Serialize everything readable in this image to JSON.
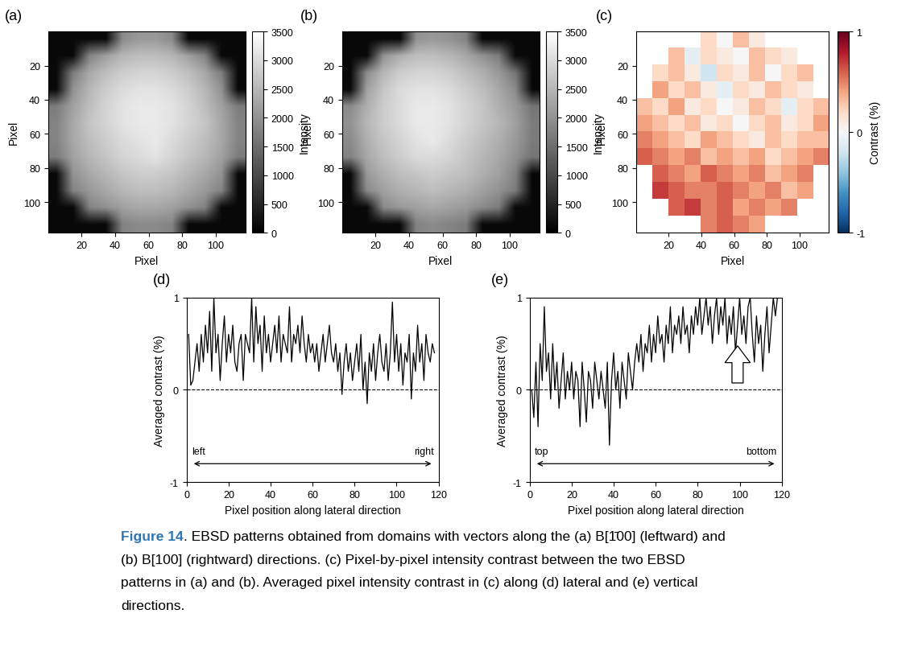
{
  "chart_data": [
    {
      "type": "heatmap",
      "panel": "(a)",
      "xlabel": "Pixel",
      "ylabel": "Pixel",
      "xlim": [
        0,
        118
      ],
      "ylim": [
        118,
        0
      ],
      "xticks": [
        20,
        40,
        60,
        80,
        100
      ],
      "yticks": [
        20,
        40,
        60,
        80,
        100
      ],
      "cells": [
        [
          120,
          120,
          120,
          120,
          1900,
          2100,
          2100,
          1900,
          120,
          120,
          120,
          120
        ],
        [
          120,
          120,
          1800,
          2200,
          2500,
          2600,
          2600,
          2500,
          2200,
          1800,
          120,
          120
        ],
        [
          120,
          1700,
          2300,
          2600,
          2800,
          2900,
          2900,
          2800,
          2600,
          2300,
          1700,
          120
        ],
        [
          120,
          2000,
          2500,
          2800,
          3000,
          3100,
          3100,
          3000,
          2800,
          2500,
          2000,
          120
        ],
        [
          1700,
          2200,
          2600,
          2900,
          3100,
          3200,
          3200,
          3100,
          2900,
          2600,
          2200,
          1700
        ],
        [
          1800,
          2300,
          2700,
          2900,
          3100,
          3200,
          3200,
          3100,
          2900,
          2700,
          2300,
          1800
        ],
        [
          1800,
          2300,
          2600,
          2800,
          3000,
          3100,
          3200,
          3000,
          2800,
          2600,
          2300,
          1800
        ],
        [
          1700,
          2200,
          2500,
          2700,
          2900,
          3000,
          3100,
          2900,
          2700,
          2500,
          2200,
          1700
        ],
        [
          120,
          2000,
          2300,
          2500,
          2700,
          2800,
          2800,
          2700,
          2500,
          2300,
          2000,
          120
        ],
        [
          120,
          1800,
          2100,
          2300,
          2500,
          2600,
          2600,
          2500,
          2300,
          2100,
          1800,
          120
        ],
        [
          120,
          120,
          1800,
          2000,
          2200,
          2300,
          2300,
          2200,
          2000,
          1800,
          120,
          120
        ],
        [
          120,
          120,
          120,
          120,
          1800,
          1900,
          1900,
          1800,
          120,
          120,
          120,
          120
        ]
      ],
      "colorbar": {
        "label": "Intensity",
        "range": [
          0,
          3500
        ],
        "ticks": [
          0,
          500,
          1000,
          1500,
          2000,
          2500,
          3000,
          3500
        ]
      }
    },
    {
      "type": "heatmap",
      "panel": "(b)",
      "xlabel": "Pixel",
      "ylabel": "Pixel",
      "xlim": [
        0,
        118
      ],
      "ylim": [
        118,
        0
      ],
      "xticks": [
        20,
        40,
        60,
        80,
        100
      ],
      "yticks": [
        20,
        40,
        60,
        80,
        100
      ],
      "cells": [
        [
          120,
          120,
          120,
          120,
          2000,
          2100,
          2000,
          1800,
          120,
          120,
          120,
          120
        ],
        [
          120,
          120,
          2000,
          2400,
          2600,
          2600,
          2500,
          2300,
          2000,
          1700,
          120,
          120
        ],
        [
          120,
          1900,
          2500,
          2800,
          2900,
          2900,
          2800,
          2600,
          2400,
          2100,
          1600,
          120
        ],
        [
          120,
          2200,
          2700,
          3000,
          3100,
          3100,
          3000,
          2800,
          2600,
          2300,
          1900,
          120
        ],
        [
          1900,
          2400,
          2800,
          3000,
          3200,
          3200,
          3100,
          2900,
          2700,
          2400,
          2100,
          1600
        ],
        [
          2000,
          2500,
          2800,
          3000,
          3200,
          3200,
          3100,
          2900,
          2700,
          2500,
          2200,
          1700
        ],
        [
          1900,
          2400,
          2700,
          2900,
          3100,
          3200,
          3000,
          2800,
          2600,
          2400,
          2100,
          1700
        ],
        [
          1800,
          2300,
          2600,
          2800,
          3000,
          3000,
          2900,
          2700,
          2500,
          2300,
          2000,
          1600
        ],
        [
          120,
          2100,
          2400,
          2600,
          2700,
          2800,
          2700,
          2600,
          2400,
          2200,
          1800,
          120
        ],
        [
          120,
          1900,
          2200,
          2400,
          2500,
          2600,
          2500,
          2400,
          2200,
          2000,
          1700,
          120
        ],
        [
          120,
          120,
          1900,
          2100,
          2200,
          2300,
          2200,
          2100,
          1900,
          1700,
          120,
          120
        ],
        [
          120,
          120,
          120,
          120,
          1800,
          1900,
          1800,
          1700,
          120,
          120,
          120,
          120
        ]
      ],
      "colorbar": {
        "label": "Intensity",
        "range": [
          0,
          3500
        ],
        "ticks": [
          0,
          500,
          1000,
          1500,
          2000,
          2500,
          3000,
          3500
        ]
      }
    },
    {
      "type": "heatmap",
      "panel": "(c)",
      "xlabel": "Pixel",
      "ylabel": "Pixel",
      "xlim": [
        0,
        118
      ],
      "ylim": [
        118,
        0
      ],
      "xticks": [
        20,
        40,
        60,
        80,
        100
      ],
      "yticks": [
        20,
        40,
        60,
        80,
        100
      ],
      "cells": [
        [
          null,
          null,
          null,
          null,
          0.2,
          0.0,
          0.3,
          0.1,
          null,
          null,
          null,
          null
        ],
        [
          null,
          null,
          0.3,
          -0.1,
          0.2,
          0.1,
          0.0,
          0.3,
          0.2,
          0.1,
          null,
          null
        ],
        [
          null,
          0.2,
          0.3,
          0.1,
          -0.2,
          0.2,
          0.1,
          0.3,
          0.0,
          0.2,
          0.3,
          null
        ],
        [
          null,
          0.4,
          0.2,
          0.3,
          0.1,
          -0.1,
          0.2,
          0.1,
          0.3,
          0.2,
          0.1,
          null
        ],
        [
          0.3,
          0.2,
          0.4,
          0.1,
          0.2,
          0.0,
          0.1,
          0.3,
          0.2,
          -0.1,
          0.2,
          0.3
        ],
        [
          0.4,
          0.3,
          0.2,
          0.3,
          0.1,
          0.2,
          0.0,
          0.2,
          0.3,
          0.1,
          0.2,
          0.4
        ],
        [
          0.5,
          0.4,
          0.3,
          0.2,
          0.4,
          0.3,
          0.2,
          0.1,
          0.3,
          0.2,
          0.3,
          0.3
        ],
        [
          0.6,
          0.5,
          0.4,
          0.5,
          0.3,
          0.4,
          0.3,
          0.4,
          0.2,
          0.3,
          0.4,
          0.5
        ],
        [
          null,
          0.6,
          0.5,
          0.4,
          0.6,
          0.5,
          0.4,
          0.5,
          0.3,
          0.4,
          0.5,
          null
        ],
        [
          null,
          0.7,
          0.6,
          0.5,
          0.5,
          0.6,
          0.5,
          0.4,
          0.5,
          0.3,
          0.4,
          null
        ],
        [
          null,
          null,
          0.6,
          0.7,
          0.5,
          0.6,
          0.4,
          0.5,
          0.4,
          0.5,
          null,
          null
        ],
        [
          null,
          null,
          null,
          null,
          0.5,
          0.6,
          0.5,
          0.4,
          null,
          null,
          null,
          null
        ]
      ],
      "colorbar": {
        "label": "Contrast (%)",
        "range": [
          -1,
          1
        ],
        "ticks": [
          -1,
          0,
          1
        ]
      }
    },
    {
      "type": "line",
      "panel": "(d)",
      "xlabel": "Pixel position along lateral direction",
      "ylabel": "Averaged contrast (%)",
      "xlim": [
        0,
        120
      ],
      "ylim": [
        -1,
        1
      ],
      "xticks": [
        0,
        20,
        40,
        60,
        80,
        100,
        120
      ],
      "yticks": [
        -1,
        0,
        1
      ],
      "hline": 0,
      "color": "#000000",
      "arrow_labels": [
        "left",
        "right"
      ],
      "x": [
        1,
        2,
        3,
        4,
        5,
        6,
        7,
        8,
        9,
        10,
        11,
        12,
        13,
        14,
        15,
        16,
        17,
        18,
        19,
        20,
        21,
        22,
        23,
        24,
        25,
        26,
        27,
        28,
        29,
        30,
        31,
        32,
        33,
        34,
        35,
        36,
        37,
        38,
        39,
        40,
        41,
        42,
        43,
        44,
        45,
        46,
        47,
        48,
        49,
        50,
        51,
        52,
        53,
        54,
        55,
        56,
        57,
        58,
        59,
        60,
        61,
        62,
        63,
        64,
        65,
        66,
        67,
        68,
        69,
        70,
        71,
        72,
        73,
        74,
        75,
        76,
        77,
        78,
        79,
        80,
        81,
        82,
        83,
        84,
        85,
        86,
        87,
        88,
        89,
        90,
        91,
        92,
        93,
        94,
        95,
        96,
        97,
        98,
        99,
        100,
        101,
        102,
        103,
        104,
        105,
        106,
        107,
        108,
        109,
        110,
        111,
        112,
        113,
        114,
        115,
        116,
        117,
        118
      ],
      "values": [
        0.6,
        0.05,
        0.1,
        0.3,
        0.5,
        0.2,
        0.6,
        0.3,
        0.7,
        0.4,
        0.85,
        0.2,
        1.0,
        0.4,
        0.6,
        0.1,
        0.5,
        0.8,
        0.3,
        0.6,
        0.4,
        0.7,
        0.3,
        0.2,
        0.5,
        0.6,
        0.1,
        0.6,
        0.5,
        0.4,
        1.0,
        0.3,
        0.9,
        0.5,
        0.7,
        0.2,
        0.8,
        0.4,
        0.6,
        0.3,
        0.5,
        0.7,
        0.4,
        0.8,
        0.3,
        0.6,
        0.5,
        0.4,
        0.9,
        0.3,
        0.6,
        0.5,
        0.7,
        0.4,
        0.8,
        0.5,
        0.3,
        0.6,
        0.4,
        0.5,
        0.3,
        0.5,
        0.2,
        0.4,
        0.6,
        0.3,
        0.5,
        0.7,
        0.4,
        0.3,
        0.5,
        0.2,
        0.4,
        -0.05,
        0.3,
        0.5,
        0.2,
        0.4,
        0.1,
        0.3,
        0.5,
        0.2,
        0.6,
        0.0,
        0.3,
        -0.15,
        0.4,
        0.2,
        0.5,
        0.1,
        0.4,
        0.6,
        0.3,
        0.2,
        0.5,
        0.1,
        0.4,
        0.95,
        0.3,
        0.6,
        0.2,
        0.5,
        0.05,
        0.4,
        0.3,
        0.6,
        -0.1,
        0.4,
        0.2,
        0.7,
        0.3,
        0.5,
        0.1,
        0.6,
        0.4,
        0.3,
        0.5,
        0.4
      ]
    },
    {
      "type": "line",
      "panel": "(e)",
      "xlabel": "Pixel position along lateral direction",
      "ylabel": "Averaged contrast (%)",
      "xlim": [
        0,
        120
      ],
      "ylim": [
        -1,
        1
      ],
      "xticks": [
        0,
        20,
        40,
        60,
        80,
        100,
        120
      ],
      "yticks": [
        -1,
        0,
        1
      ],
      "hline": 0,
      "color": "#000000",
      "arrow_labels": [
        "top",
        "bottom"
      ],
      "arrow": {
        "x": 99,
        "y_from": 0.05,
        "y_to": 0.5
      },
      "x": [
        1,
        2,
        3,
        4,
        5,
        6,
        7,
        8,
        9,
        10,
        11,
        12,
        13,
        14,
        15,
        16,
        17,
        18,
        19,
        20,
        21,
        22,
        23,
        24,
        25,
        26,
        27,
        28,
        29,
        30,
        31,
        32,
        33,
        34,
        35,
        36,
        37,
        38,
        39,
        40,
        41,
        42,
        43,
        44,
        45,
        46,
        47,
        48,
        49,
        50,
        51,
        52,
        53,
        54,
        55,
        56,
        57,
        58,
        59,
        60,
        61,
        62,
        63,
        64,
        65,
        66,
        67,
        68,
        69,
        70,
        71,
        72,
        73,
        74,
        75,
        76,
        77,
        78,
        79,
        80,
        81,
        82,
        83,
        84,
        85,
        86,
        87,
        88,
        89,
        90,
        91,
        92,
        93,
        94,
        95,
        96,
        97,
        98,
        99,
        100,
        101,
        102,
        103,
        104,
        105,
        106,
        107,
        108,
        109,
        110,
        111,
        112,
        113,
        114,
        115,
        116,
        117,
        118
      ],
      "values": [
        0.0,
        -0.3,
        0.3,
        -0.4,
        0.5,
        0.1,
        0.9,
        0.2,
        0.4,
        -0.1,
        0.5,
        0.0,
        0.3,
        -0.2,
        0.1,
        0.4,
        -0.1,
        0.2,
        0.0,
        0.3,
        -0.1,
        0.2,
        0.1,
        -0.4,
        0.3,
        0.0,
        -0.35,
        0.2,
        0.1,
        -0.2,
        0.3,
        0.1,
        -0.1,
        0.2,
        0.0,
        -0.2,
        0.3,
        -0.6,
        0.1,
        0.4,
        0.0,
        0.2,
        -0.2,
        0.3,
        0.1,
        -0.1,
        0.4,
        0.2,
        0.0,
        0.3,
        0.5,
        0.3,
        0.6,
        0.2,
        0.5,
        0.4,
        0.7,
        0.3,
        0.6,
        0.4,
        0.8,
        0.5,
        0.6,
        0.3,
        0.7,
        0.5,
        0.9,
        0.4,
        0.7,
        0.6,
        0.8,
        0.5,
        0.9,
        0.6,
        0.7,
        0.4,
        0.8,
        0.6,
        0.9,
        0.7,
        1.0,
        0.6,
        0.8,
        1.0,
        0.7,
        0.9,
        0.5,
        0.8,
        1.0,
        0.6,
        0.9,
        0.7,
        1.0,
        0.5,
        0.8,
        0.6,
        0.9,
        0.4,
        0.7,
        1.0,
        0.6,
        0.8,
        0.5,
        0.9,
        1.0,
        0.6,
        0.3,
        0.8,
        0.5,
        0.7,
        0.2,
        0.6,
        0.9,
        0.4,
        0.7,
        1.0,
        0.8,
        1.0
      ]
    }
  ],
  "caption": {
    "label": "Figure 14",
    "lines": [
      ". EBSD patterns obtained from domains with vectors along the (a) B[1̄00] (leftward) and",
      "(b) B[100] (rightward) directions. (c) Pixel-by-pixel intensity contrast between the two EBSD",
      "patterns in (a) and (b). Averaged pixel intensity contrast in (c) along (d) lateral and (e) vertical",
      "directions."
    ]
  }
}
